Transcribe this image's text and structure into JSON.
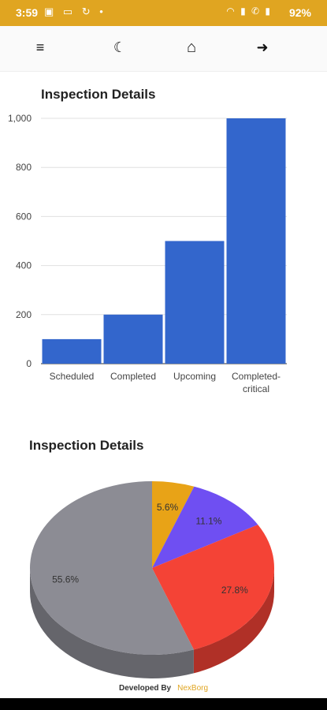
{
  "status_bar": {
    "time": "3:59",
    "battery": "92%",
    "left_icons": [
      "image-icon",
      "laptop-icon",
      "swirl-icon",
      "dot-icon"
    ],
    "right_icons": [
      "wifi-icon",
      "signal-icon",
      "call-signal-icon",
      "signal-icon"
    ]
  },
  "toolbar": {
    "menu_icon": "≡",
    "theme_icon": "☾",
    "home_icon": "⌂",
    "logout_icon": "➜"
  },
  "bar_chart": {
    "title": "Inspection Details"
  },
  "pie_chart": {
    "title": "Inspection Details"
  },
  "footer": {
    "developed_by": "Developed By",
    "brand": "NexBorg"
  },
  "chart_data": [
    {
      "type": "bar",
      "title": "Inspection Details",
      "categories": [
        "Scheduled",
        "Completed",
        "Upcoming",
        "Completed-critical"
      ],
      "category_lines": [
        [
          "Scheduled"
        ],
        [
          "Completed"
        ],
        [
          "Upcoming"
        ],
        [
          "Completed-",
          "critical"
        ]
      ],
      "values": [
        100,
        200,
        500,
        1000
      ],
      "ylim": [
        0,
        1000
      ],
      "yticks": [
        0,
        200,
        400,
        600,
        800,
        1000
      ],
      "ytick_labels": [
        "0",
        "200",
        "400",
        "600",
        "800",
        "1,000"
      ],
      "grid": true,
      "color": "#3366cc"
    },
    {
      "type": "pie",
      "title": "Inspection Details",
      "style": "3d",
      "slices": [
        {
          "value": 5.6,
          "label": "5.6%",
          "color": "#e8a317"
        },
        {
          "value": 11.1,
          "label": "11.1%",
          "color": "#6f4ff2"
        },
        {
          "value": 27.8,
          "label": "27.8%",
          "color": "#f44336"
        },
        {
          "value": 55.6,
          "label": "55.6%",
          "color": "#8c8c94"
        }
      ]
    }
  ]
}
